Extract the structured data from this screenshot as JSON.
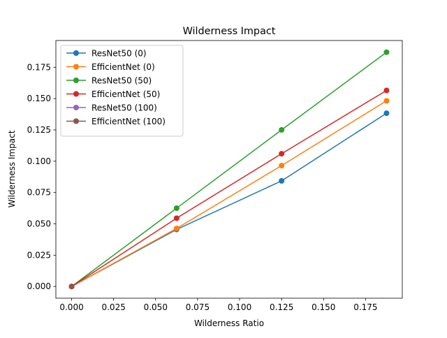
{
  "chart_data": {
    "type": "line",
    "title": "Wilderness Impact",
    "xlabel": "Wilderness Ratio",
    "ylabel": "Wilderness Impact",
    "xlim": [
      -0.009375,
      0.196875
    ],
    "ylim": [
      -0.00935,
      0.19635
    ],
    "x_ticks": [
      "0.000",
      "0.025",
      "0.050",
      "0.075",
      "0.100",
      "0.125",
      "0.150",
      "0.175"
    ],
    "x_tick_values": [
      0,
      0.025,
      0.05,
      0.075,
      0.1,
      0.125,
      0.15,
      0.175
    ],
    "y_ticks": [
      "0.000",
      "0.025",
      "0.050",
      "0.075",
      "0.100",
      "0.125",
      "0.150",
      "0.175"
    ],
    "y_tick_values": [
      0,
      0.025,
      0.05,
      0.075,
      0.1,
      0.125,
      0.15,
      0.175
    ],
    "grid": false,
    "legend_position": "upper-left",
    "x": [
      0,
      0.0625,
      0.125,
      0.1875
    ],
    "series": [
      {
        "name": "ResNet50 (0)",
        "color": "#1f77b4",
        "values": [
          0,
          0.0455,
          0.0843,
          0.1383
        ]
      },
      {
        "name": "EfficientNet (0)",
        "color": "#ff7f0e",
        "values": [
          0,
          0.0463,
          0.0965,
          0.1482
        ]
      },
      {
        "name": "ResNet50 (50)",
        "color": "#2ca02c",
        "values": [
          0,
          0.0625,
          0.125,
          0.187
        ]
      },
      {
        "name": "EfficientNet (50)",
        "color": "#d62728",
        "values": [
          0,
          0.0545,
          0.106,
          0.1565
        ]
      },
      {
        "name": "ResNet50 (100)",
        "color": "#9467bd",
        "values": [
          0,
          null,
          null,
          null
        ]
      },
      {
        "name": "EfficientNet (100)",
        "color": "#8c564b",
        "values": [
          0,
          null,
          null,
          null
        ]
      }
    ]
  }
}
